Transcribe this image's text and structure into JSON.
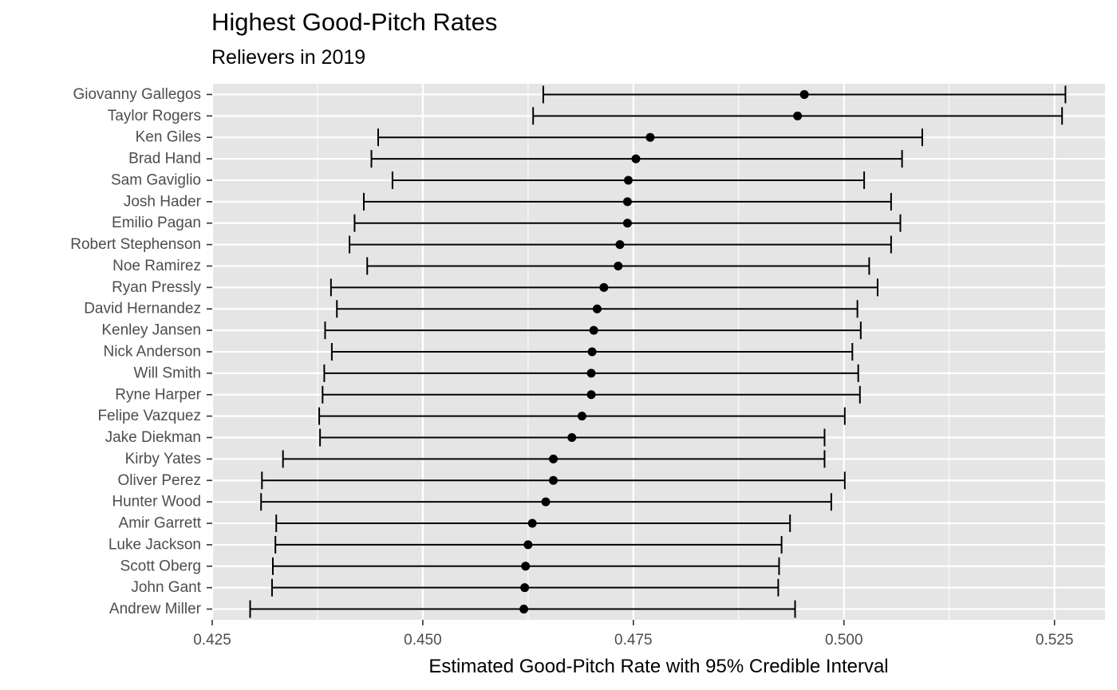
{
  "chart_data": {
    "type": "scatter",
    "title": "Highest Good-Pitch Rates",
    "subtitle": "Relievers in 2019",
    "xlabel": "Estimated Good-Pitch Rate with 95% Credible Interval",
    "ylabel": "",
    "xlim": [
      0.425,
      0.531
    ],
    "xticks": [
      "0.425",
      "0.450",
      "0.475",
      "0.500",
      "0.525"
    ],
    "grid": true,
    "legend": "none",
    "colors": {
      "panel": "#e5e5e5",
      "grid": "#ffffff",
      "marks": "#000000"
    },
    "players": [
      {
        "name": "Giovanny Gallegos",
        "estimate": 0.4953,
        "lower": 0.4643,
        "upper": 0.5263
      },
      {
        "name": "Taylor Rogers",
        "estimate": 0.4945,
        "lower": 0.4631,
        "upper": 0.5259
      },
      {
        "name": "Ken Giles",
        "estimate": 0.477,
        "lower": 0.4447,
        "upper": 0.5093
      },
      {
        "name": "Brad Hand",
        "estimate": 0.4753,
        "lower": 0.4439,
        "upper": 0.5069
      },
      {
        "name": "Sam Gaviglio",
        "estimate": 0.4744,
        "lower": 0.4464,
        "upper": 0.5024
      },
      {
        "name": "Josh Hader",
        "estimate": 0.4743,
        "lower": 0.443,
        "upper": 0.5056
      },
      {
        "name": "Emilio Pagan",
        "estimate": 0.4743,
        "lower": 0.4419,
        "upper": 0.5067
      },
      {
        "name": "Robert Stephenson",
        "estimate": 0.4734,
        "lower": 0.4413,
        "upper": 0.5056
      },
      {
        "name": "Noe Ramirez",
        "estimate": 0.4732,
        "lower": 0.4434,
        "upper": 0.503
      },
      {
        "name": "Ryan Pressly",
        "estimate": 0.4715,
        "lower": 0.4391,
        "upper": 0.504
      },
      {
        "name": "David Hernandez",
        "estimate": 0.4707,
        "lower": 0.4398,
        "upper": 0.5016
      },
      {
        "name": "Kenley Jansen",
        "estimate": 0.4703,
        "lower": 0.4384,
        "upper": 0.502
      },
      {
        "name": "Nick Anderson",
        "estimate": 0.4701,
        "lower": 0.4392,
        "upper": 0.501
      },
      {
        "name": "Will Smith",
        "estimate": 0.47,
        "lower": 0.4383,
        "upper": 0.5017
      },
      {
        "name": "Ryne Harper",
        "estimate": 0.47,
        "lower": 0.4381,
        "upper": 0.5019
      },
      {
        "name": "Felipe Vazquez",
        "estimate": 0.4689,
        "lower": 0.4377,
        "upper": 0.5001
      },
      {
        "name": "Jake Diekman",
        "estimate": 0.4677,
        "lower": 0.4378,
        "upper": 0.4977
      },
      {
        "name": "Kirby Yates",
        "estimate": 0.4655,
        "lower": 0.4334,
        "upper": 0.4977
      },
      {
        "name": "Oliver Perez",
        "estimate": 0.4655,
        "lower": 0.4309,
        "upper": 0.5001
      },
      {
        "name": "Hunter Wood",
        "estimate": 0.4646,
        "lower": 0.4308,
        "upper": 0.4985
      },
      {
        "name": "Amir Garrett",
        "estimate": 0.463,
        "lower": 0.4326,
        "upper": 0.4936
      },
      {
        "name": "Luke Jackson",
        "estimate": 0.4625,
        "lower": 0.4325,
        "upper": 0.4926
      },
      {
        "name": "Scott Oberg",
        "estimate": 0.4622,
        "lower": 0.4322,
        "upper": 0.4923
      },
      {
        "name": "John Gant",
        "estimate": 0.4621,
        "lower": 0.4321,
        "upper": 0.4922
      },
      {
        "name": "Andrew Miller",
        "estimate": 0.462,
        "lower": 0.4295,
        "upper": 0.4942
      }
    ]
  }
}
